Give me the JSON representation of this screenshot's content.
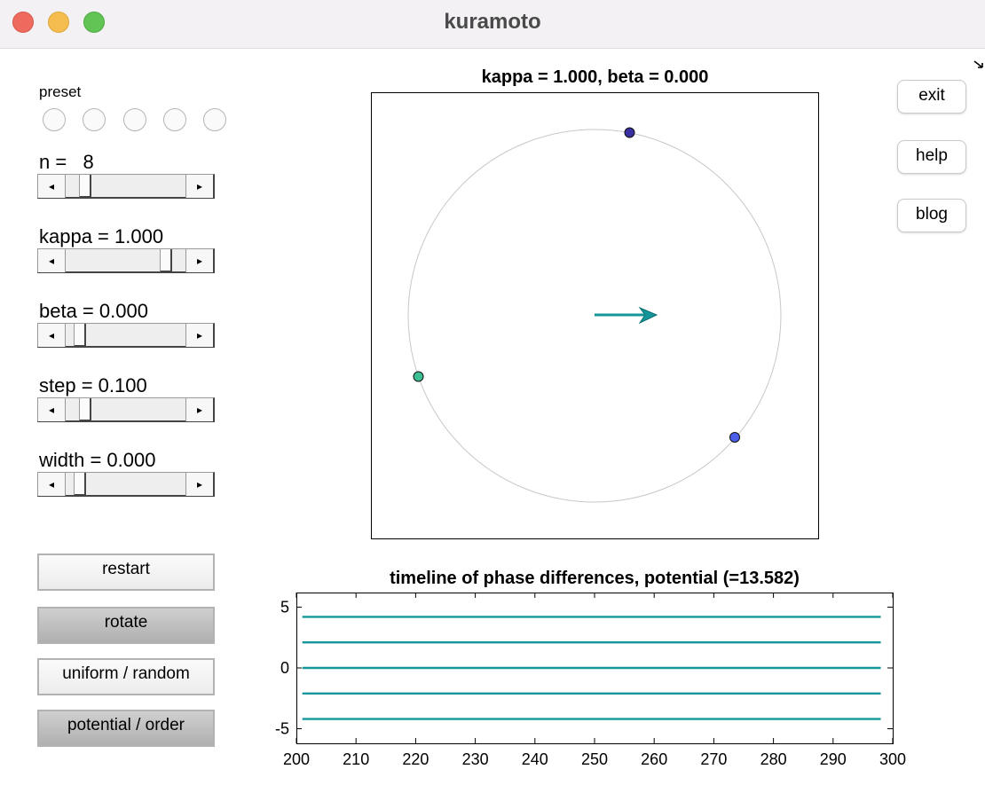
{
  "window": {
    "title": "kuramoto"
  },
  "controls": {
    "preset_label": "preset",
    "sliders": [
      {
        "label": "n =   8",
        "value": 0.13
      },
      {
        "label": "kappa = 1.000",
        "value": 0.85
      },
      {
        "label": "beta = 0.000",
        "value": 0.08
      },
      {
        "label": "step = 0.100",
        "value": 0.13
      },
      {
        "label": "width = 0.000",
        "value": 0.08
      }
    ],
    "buttons": [
      "restart",
      "rotate",
      "uniform / random",
      "potential / order"
    ]
  },
  "side_buttons": {
    "exit": "exit",
    "help": "help",
    "blog": "blog"
  },
  "phase_plot": {
    "title": "kappa = 1.000, beta = 0.000",
    "colors": {
      "dot_top": "#38309e",
      "dot_right": "#4a5ee8",
      "dot_left": "#3dbf95",
      "arrow": "#13979a",
      "circle": "#c8c8c8"
    }
  },
  "chart_data": {
    "type": "line",
    "title": "timeline of phase differences, potential (=13.582)",
    "xlabel": "",
    "ylabel": "",
    "xlim": [
      200,
      300
    ],
    "ylim": [
      -6.2,
      6.2
    ],
    "xticks": [
      200,
      210,
      220,
      230,
      240,
      250,
      260,
      270,
      280,
      290,
      300
    ],
    "yticks": [
      5,
      0,
      -5
    ],
    "x_range": [
      201,
      298
    ],
    "series_values": [
      4.2,
      2.1,
      0,
      -2.1,
      -4.2
    ],
    "line_color": "#13979a",
    "grid": false
  }
}
